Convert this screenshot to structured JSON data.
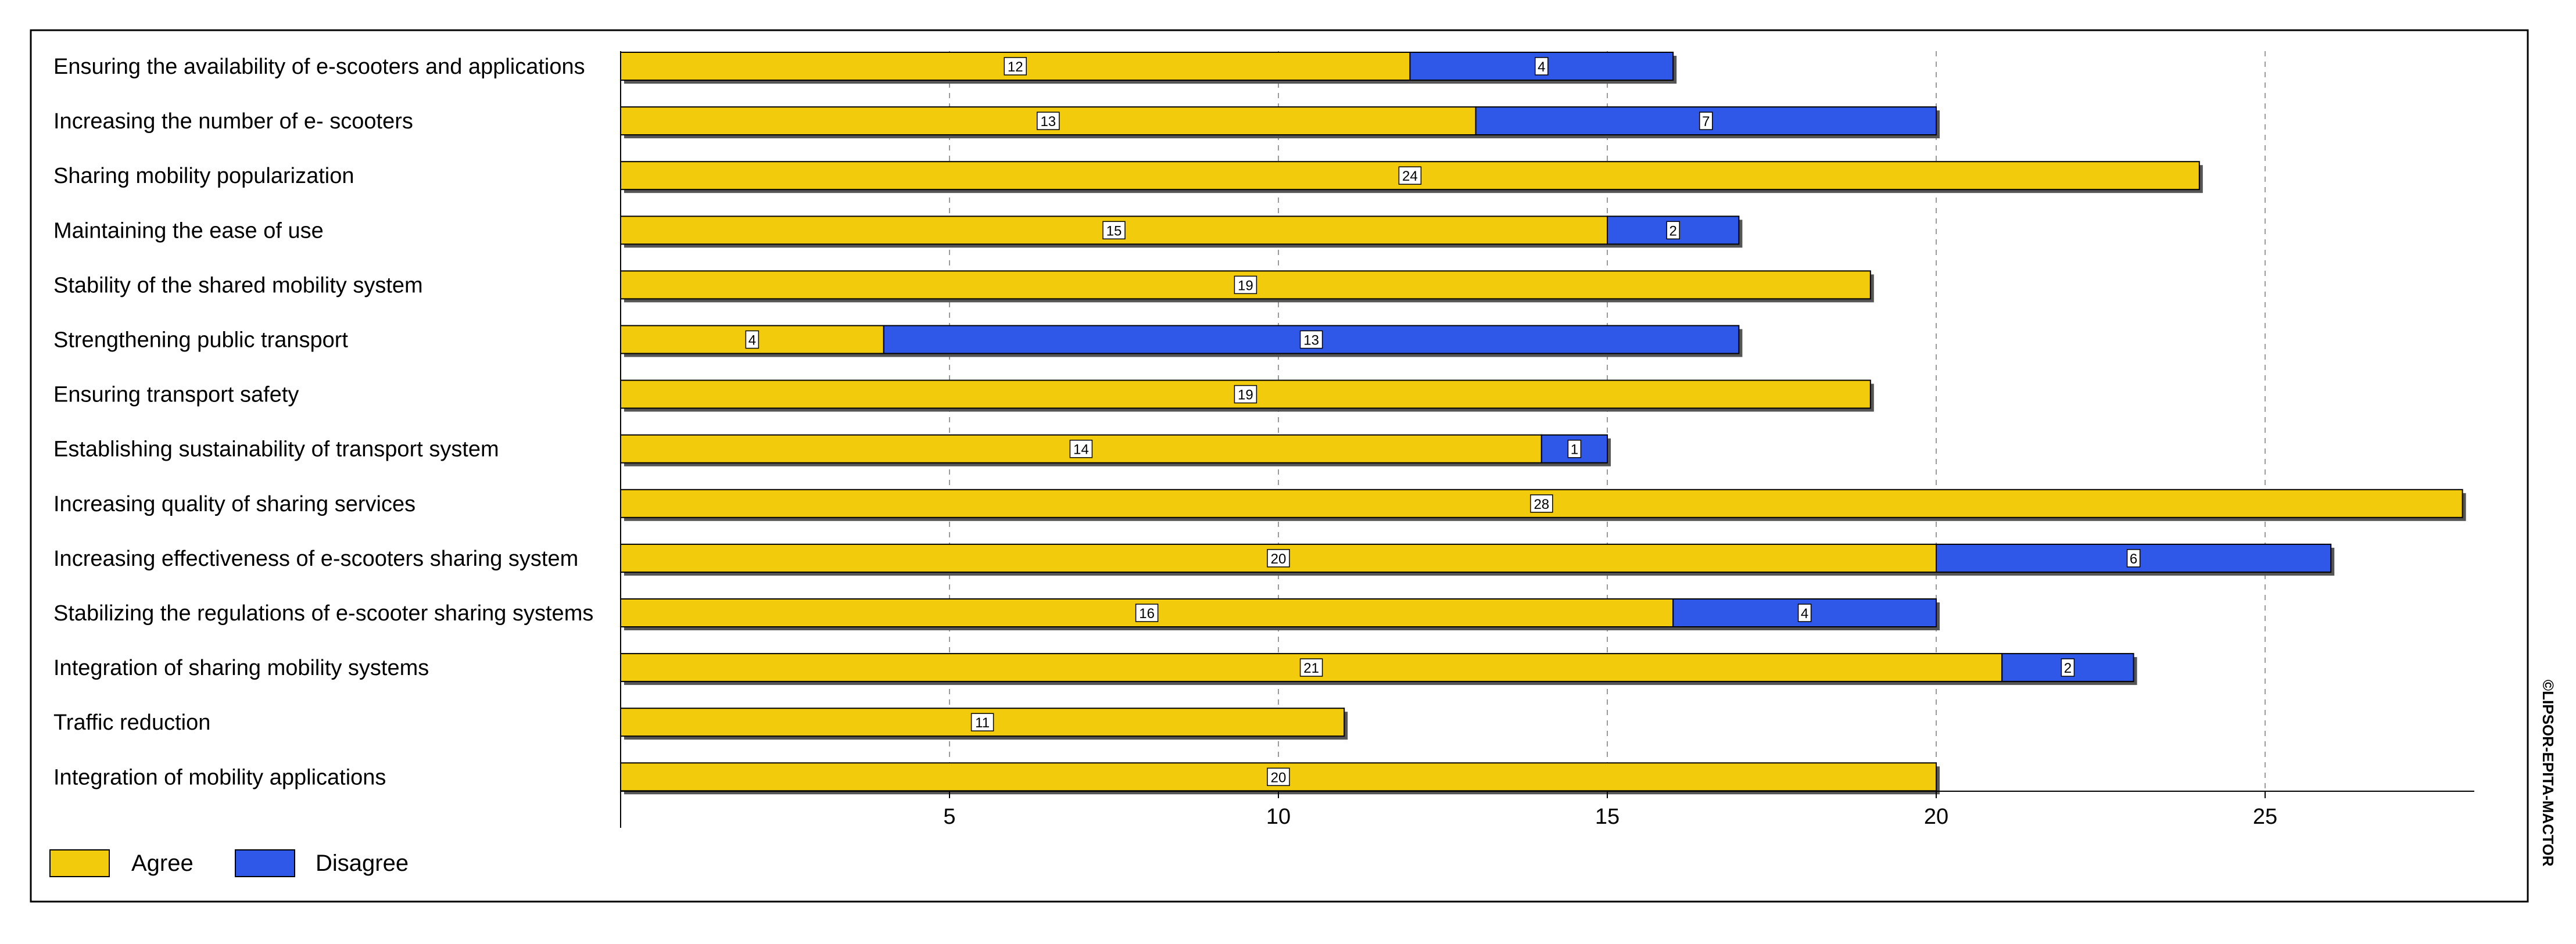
{
  "chart_data": {
    "type": "bar",
    "orientation": "horizontal",
    "stacked": true,
    "categories": [
      "Ensuring the availability of e-scooters and applications",
      "Increasing the number of e- scooters",
      "Sharing mobility popularization",
      "Maintaining the ease of use",
      "Stability of the shared mobility system",
      "Strengthening public transport",
      "Ensuring transport safety",
      "Establishing sustainability of transport system",
      "Increasing quality of sharing services",
      "Increasing effectiveness of e-scooters sharing system",
      "Stabilizing the regulations of e-scooter sharing systems",
      "Integration of sharing mobility systems",
      "Traffic reduction",
      "Integration of mobility applications"
    ],
    "series": [
      {
        "name": "Agree",
        "color": "#F2CC0C",
        "values": [
          12,
          13,
          24,
          15,
          19,
          4,
          19,
          14,
          28,
          20,
          16,
          21,
          11,
          20
        ]
      },
      {
        "name": "Disagree",
        "color": "#2F57E8",
        "values": [
          4,
          7,
          0,
          2,
          0,
          13,
          0,
          1,
          0,
          6,
          4,
          2,
          0,
          0
        ]
      }
    ],
    "xlim": [
      0,
      28.5
    ],
    "xticks": [
      5,
      10,
      15,
      20,
      25
    ],
    "grid": "vertical dashed",
    "legend_position": "bottom-left",
    "title": "",
    "xlabel": "",
    "ylabel": ""
  },
  "watermark": "©LIPSOR-EPITA-MACTOR"
}
